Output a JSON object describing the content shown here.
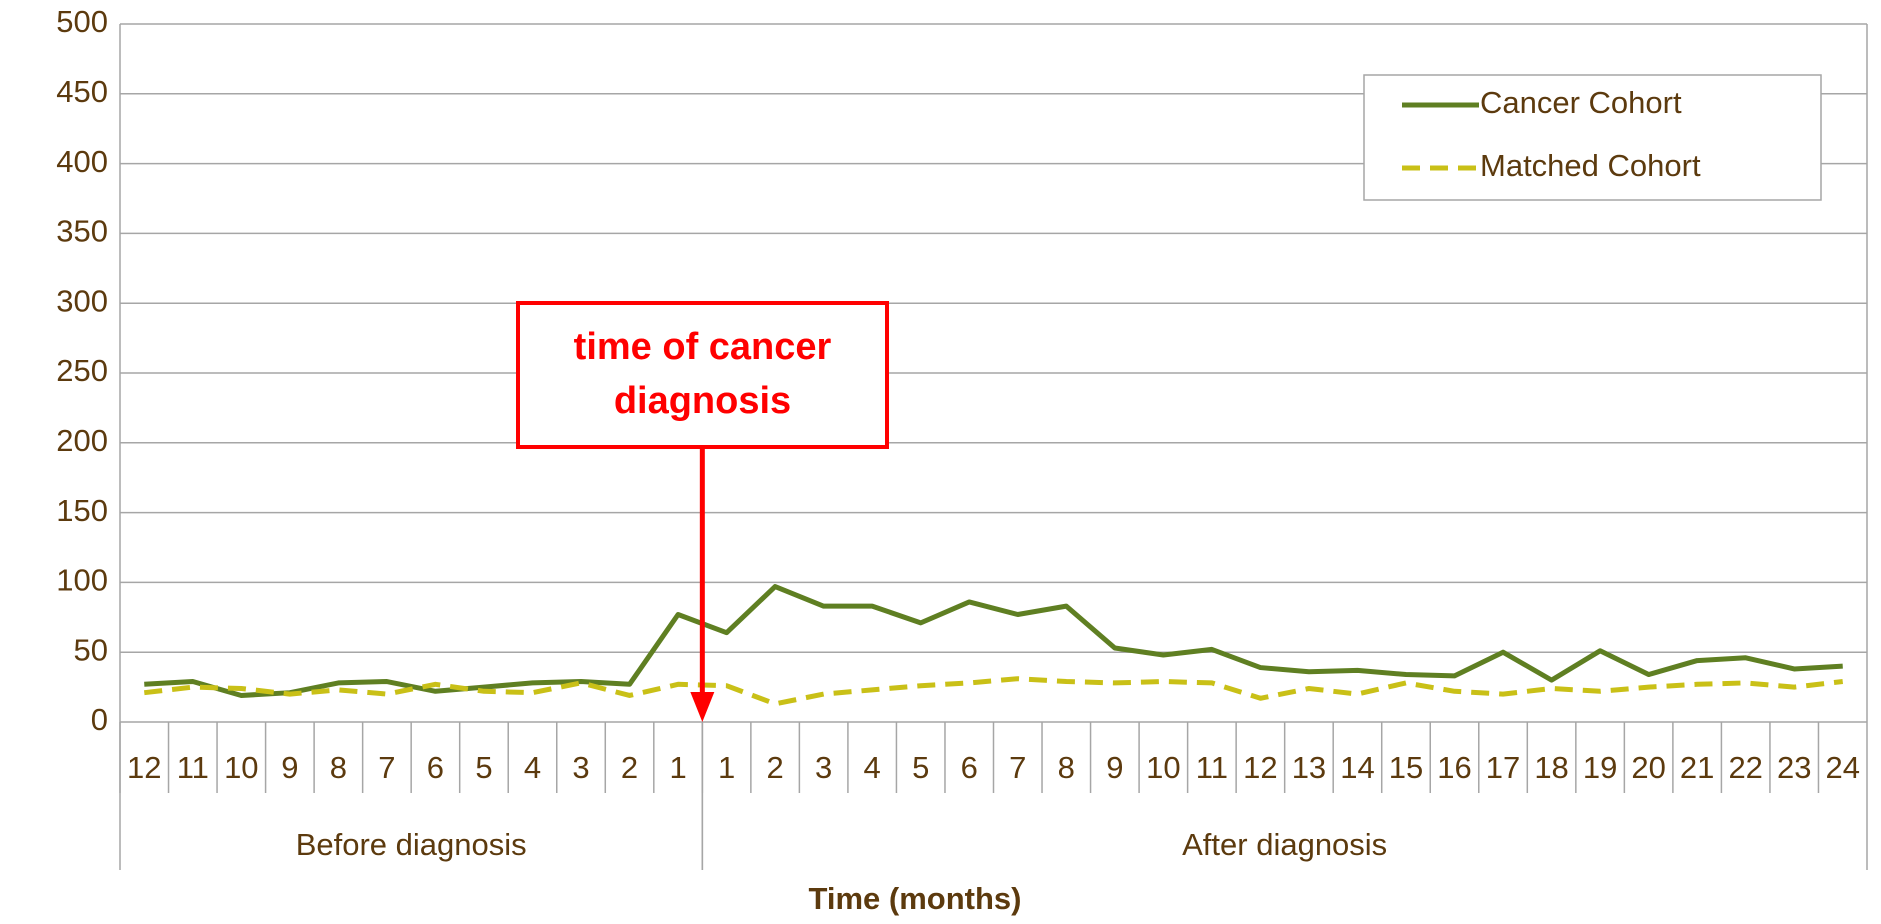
{
  "chart_data": {
    "type": "line",
    "x_label": "Time (months)",
    "groups": [
      {
        "name": "Before diagnosis",
        "categories": [
          "12",
          "11",
          "10",
          "9",
          "8",
          "7",
          "6",
          "5",
          "4",
          "3",
          "2",
          "1"
        ]
      },
      {
        "name": "After diagnosis",
        "categories": [
          "1",
          "2",
          "3",
          "4",
          "5",
          "6",
          "7",
          "8",
          "9",
          "10",
          "11",
          "12",
          "13",
          "14",
          "15",
          "16",
          "17",
          "18",
          "19",
          "20",
          "21",
          "22",
          "23",
          "24"
        ]
      }
    ],
    "series": [
      {
        "name": "Cancer Cohort",
        "color": "#5f7f22",
        "dashed": false,
        "values": [
          27,
          29,
          19,
          21,
          28,
          29,
          22,
          25,
          28,
          29,
          27,
          77,
          64,
          97,
          83,
          83,
          71,
          86,
          77,
          83,
          53,
          48,
          52,
          39,
          36,
          37,
          34,
          33,
          50,
          30,
          51,
          34,
          44,
          46,
          38,
          40
        ]
      },
      {
        "name": "Matched Cohort",
        "color": "#c9c017",
        "dashed": true,
        "values": [
          21,
          25,
          24,
          20,
          23,
          20,
          27,
          22,
          21,
          28,
          19,
          27,
          26,
          13,
          20,
          23,
          26,
          28,
          31,
          29,
          28,
          29,
          28,
          17,
          24,
          20,
          28,
          22,
          20,
          24,
          22,
          25,
          27,
          28,
          25,
          29
        ]
      }
    ],
    "ylim": [
      0,
      500
    ],
    "yticks": [
      0,
      50,
      100,
      150,
      200,
      250,
      300,
      350,
      400,
      450,
      500
    ],
    "grid": true,
    "legend": "top-right",
    "annotation": {
      "text": [
        "time of cancer",
        "diagnosis"
      ],
      "color": "#ff0000"
    }
  }
}
